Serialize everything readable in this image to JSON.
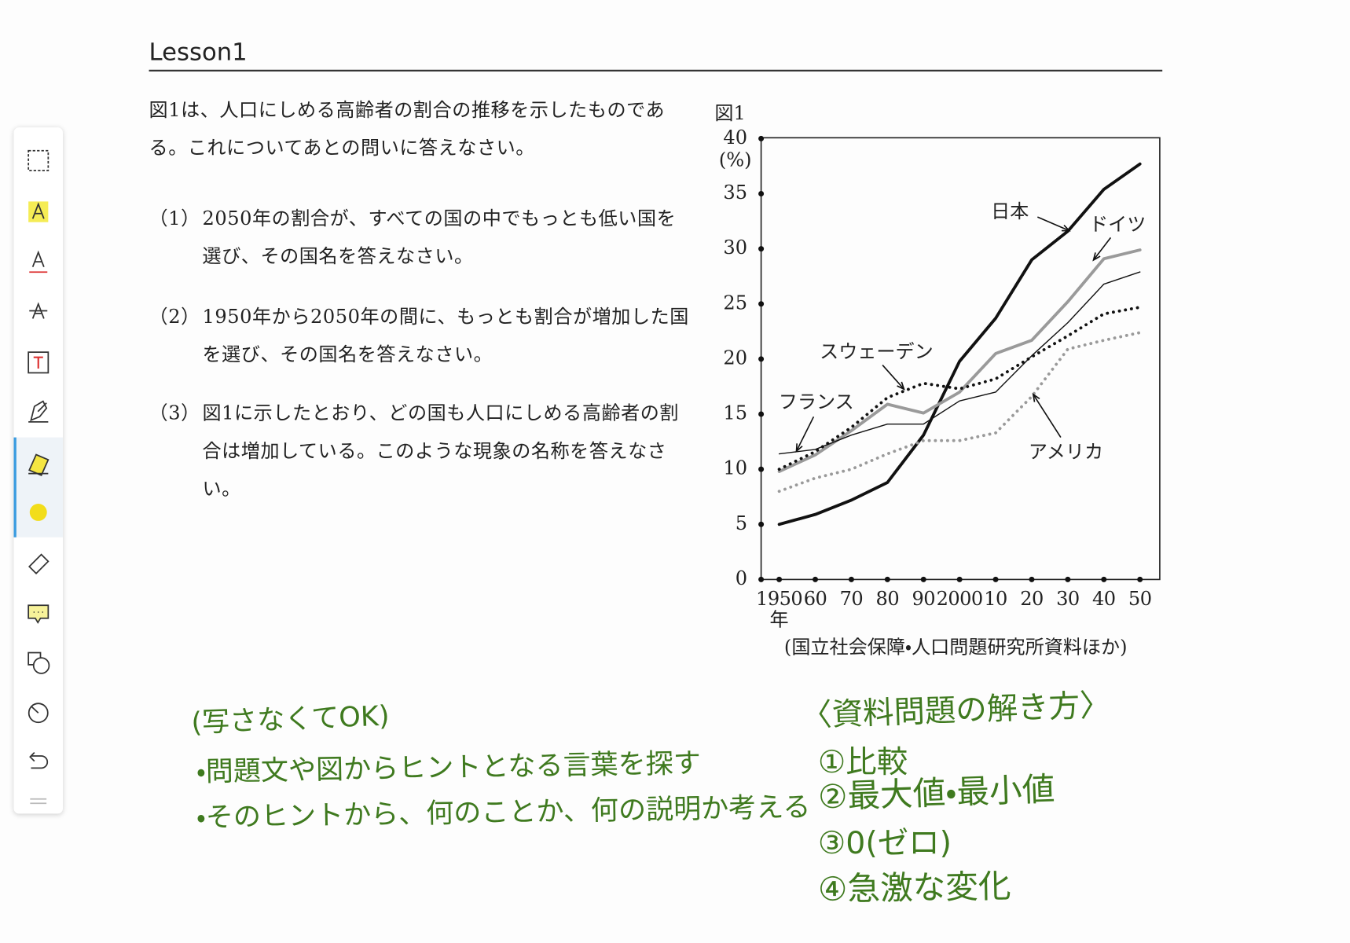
{
  "header": {
    "title": "Lesson1"
  },
  "intro": "図1は、人口にしめる高齢者の割合の推移を示したものである。これについてあとの問いに答えなさい。",
  "questions": [
    {
      "number": "（1）",
      "text": "2050年の割合が、すべての国の中でもっとも低い国を選び、その国名を答えなさい。"
    },
    {
      "number": "（2）",
      "text": "1950年から2050年の間に、もっとも割合が増加した国を選び、その国名を答えなさい。"
    },
    {
      "number": "（3）",
      "text": "図1に示したとおり、どの国も人口にしめる高齢者の割合は増加している。このような現象の名称を答えなさい。"
    }
  ],
  "chart_data": {
    "type": "line",
    "title": "図1",
    "y_label": "(%)",
    "x_label": "年",
    "source": "(国立社会保障・人口問題研究所資料ほか)",
    "categories": [
      "1950",
      "60",
      "70",
      "80",
      "90",
      "2000",
      "10",
      "20",
      "30",
      "40",
      "50"
    ],
    "ylim": [
      0,
      40
    ],
    "yticks": [
      0,
      5,
      10,
      15,
      20,
      25,
      30,
      35,
      40
    ],
    "series": [
      {
        "name": "日本",
        "color": "#111111",
        "width": 3.5,
        "dashed": false,
        "values": [
          5.0,
          5.9,
          7.2,
          8.8,
          13.1,
          19.8,
          23.7,
          29.0,
          31.6,
          35.4,
          37.7
        ]
      },
      {
        "name": "ドイツ",
        "color": "#9a9a9a",
        "width": 3.5,
        "dashed": false,
        "values": [
          9.8,
          11.3,
          13.5,
          15.9,
          15.1,
          17.0,
          20.5,
          21.7,
          25.2,
          29.1,
          29.9
        ]
      },
      {
        "name": "スウェーデン",
        "color": "#111111",
        "width": 3.5,
        "dashed": true,
        "values": [
          10.0,
          11.6,
          13.8,
          16.5,
          17.8,
          17.3,
          18.2,
          20.2,
          22.1,
          24.1,
          24.7
        ]
      },
      {
        "name": "フランス",
        "color": "#111111",
        "width": 1.3,
        "dashed": false,
        "values": [
          11.4,
          11.8,
          13.1,
          14.1,
          14.1,
          16.2,
          17.0,
          20.3,
          23.3,
          26.8,
          27.9
        ]
      },
      {
        "name": "アメリカ",
        "color": "#9a9a9a",
        "width": 3.5,
        "dashed": true,
        "values": [
          8.0,
          9.2,
          10.0,
          11.4,
          12.6,
          12.6,
          13.3,
          16.6,
          20.9,
          21.7,
          22.4
        ]
      }
    ]
  },
  "notes_left": [
    "(写さなくてOK)",
    "・問題文や図からヒントとなる言葉を探す",
    "・そのヒントから、何のことか、何の説明か考える"
  ],
  "notes_right": [
    "〈資料問題の解き方〉",
    "①比較",
    "②最大値・最小値",
    "③0(ゼロ)",
    "④急激な変化"
  ]
}
